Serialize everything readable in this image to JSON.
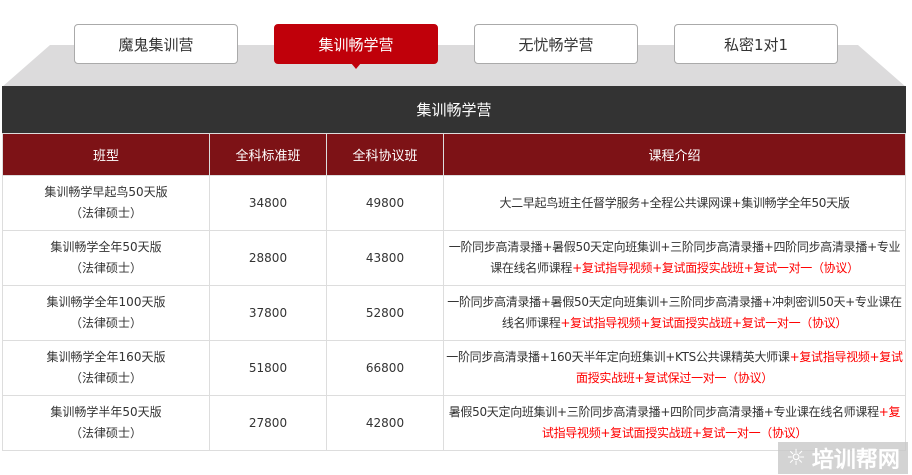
{
  "tabs": [
    {
      "label": "魔鬼集训营",
      "active": false
    },
    {
      "label": "集训畅学营",
      "active": true
    },
    {
      "label": "无忧畅学营",
      "active": false
    },
    {
      "label": "私密1对1",
      "active": false
    }
  ],
  "section_title": "集训畅学营",
  "table": {
    "headers": [
      "班型",
      "全科标准班",
      "全科协议班",
      "课程介绍"
    ],
    "rows": [
      {
        "name": "集训畅学早起鸟50天版",
        "sub": "（法律硕士）",
        "standard": "34800",
        "agreement": "49800",
        "desc_black": "大二早起鸟班主任督学服务+全程公共课网课+集训畅学全年50天版",
        "desc_red": ""
      },
      {
        "name": "集训畅学全年50天版",
        "sub": "（法律硕士）",
        "standard": "28800",
        "agreement": "43800",
        "desc_black": "一阶同步高清录播+暑假50天定向班集训+三阶同步高清录播+四阶同步高清录播+专业课在线名师课程",
        "desc_red": "+复试指导视频+复试面授实战班+复试一对一（协议）"
      },
      {
        "name": "集训畅学全年100天版",
        "sub": "（法律硕士）",
        "standard": "37800",
        "agreement": "52800",
        "desc_black": "一阶同步高清录播+暑假50天定向班集训+三阶同步高清录播+冲刺密训50天+专业课在线名师课程",
        "desc_red": "+复试指导视频+复试面授实战班+复试一对一（协议）"
      },
      {
        "name": "集训畅学全年160天版",
        "sub": "（法律硕士）",
        "standard": "51800",
        "agreement": "66800",
        "desc_black": "一阶同步高清录播+160天半年定向班集训+KTS公共课精英大师课",
        "desc_red": "+复试指导视频+复试面授实战班+复试保过一对一（协议）"
      },
      {
        "name": "集训畅学半年50天版",
        "sub": "（法律硕士）",
        "standard": "27800",
        "agreement": "42800",
        "desc_black": "暑假50天定向班集训+三阶同步高清录播+四阶同步高清录播+专业课在线名师课程",
        "desc_red": "+复试指导视频+复试面授实战班+复试一对一（协议）"
      }
    ]
  },
  "watermark": "培训帮网",
  "colors": {
    "accent": "#c0000a",
    "header": "#7d1216",
    "bar": "#333333",
    "highlight": "#ff0000"
  }
}
